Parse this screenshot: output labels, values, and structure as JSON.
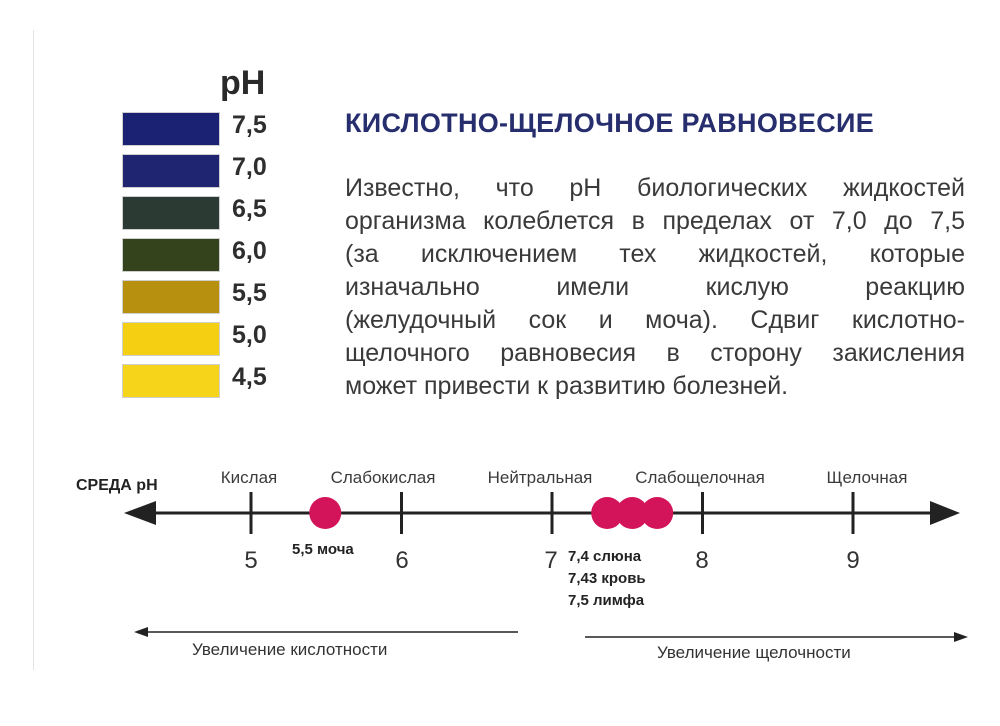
{
  "ph_scale": {
    "header": "pH",
    "items": [
      {
        "value": "7,5",
        "color": "#1b2273"
      },
      {
        "value": "7,0",
        "color": "#1f2571"
      },
      {
        "value": "6,5",
        "color": "#2b3a33"
      },
      {
        "value": "6,0",
        "color": "#34431b"
      },
      {
        "value": "5,5",
        "color": "#b8900f"
      },
      {
        "value": "5,0",
        "color": "#f5cf12"
      },
      {
        "value": "4,5",
        "color": "#f6d41a"
      }
    ]
  },
  "title": "КИСЛОТНО-ЩЕЛОЧНОЕ РАВНОВЕСИЕ",
  "paragraph_lines": [
    "Известно, что  pH биологических жидкостей",
    "организма колеблется в пределах от 7,0 до 7,5",
    "(за исключением тех жидкостей, которые",
    "изначально имели кислую реакцию",
    "(желудочный сок и моча). Сдвиг  кислотно-",
    "щелочного равновесия в сторону закисления",
    "может привести к развитию болезней."
  ],
  "axis": {
    "label": "СРЕДА pH",
    "categories": [
      "Кислая",
      "Слабокислая",
      "Нейтральная",
      "Слабощелочная",
      "Щелочная"
    ],
    "ticks": [
      "5",
      "6",
      "7",
      "8",
      "9"
    ],
    "marker_color": "#d4145a",
    "markers": [
      {
        "ph": 5.5,
        "labels": [
          "5,5 моча"
        ]
      },
      {
        "ph": 7.4,
        "labels": [
          "7,4  слюна",
          "7,43 кровь",
          "7,5  лимфа"
        ]
      }
    ]
  },
  "bottom": {
    "left_text": "Увеличение кислотности",
    "right_text": "Увеличение щелочности"
  }
}
